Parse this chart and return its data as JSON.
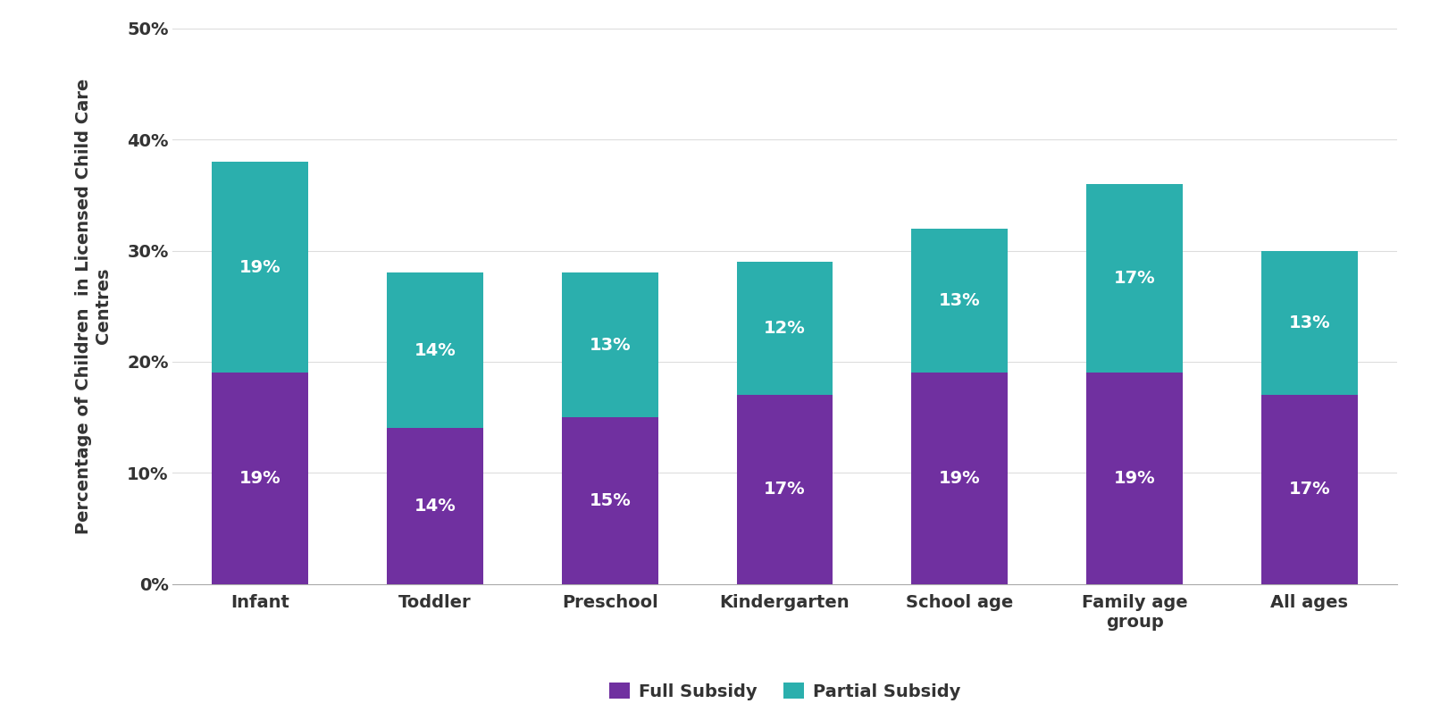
{
  "categories": [
    "Infant",
    "Toddler",
    "Preschool",
    "Kindergarten",
    "School age",
    "Family age\ngroup",
    "All ages"
  ],
  "full_subsidy": [
    19,
    14,
    15,
    17,
    19,
    19,
    17
  ],
  "partial_subsidy": [
    19,
    14,
    13,
    12,
    13,
    17,
    13
  ],
  "full_color": "#7030A0",
  "partial_color": "#2BAFAD",
  "ylim": [
    0,
    50
  ],
  "yticks": [
    0,
    10,
    20,
    30,
    40,
    50
  ],
  "legend_labels": [
    "Full Subsidy",
    "Partial Subsidy"
  ],
  "background_color": "#ffffff",
  "label_fontsize": 14,
  "axis_fontsize": 14,
  "tick_fontsize": 14,
  "bar_width": 0.55,
  "ylabel_line1": "Percentage of Children  in Licensed Child Care",
  "ylabel_line2": "Centres"
}
